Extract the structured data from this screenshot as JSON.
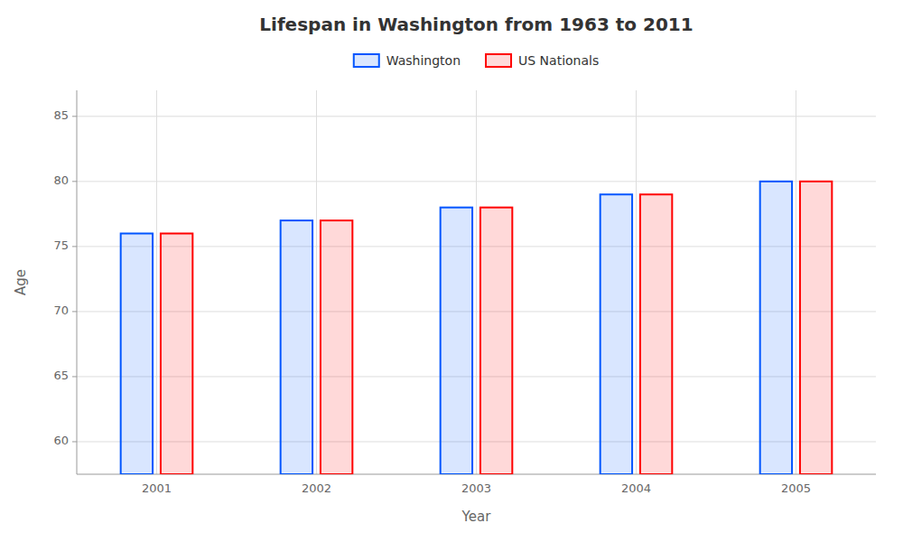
{
  "chart_data": {
    "type": "bar",
    "title": "Lifespan in Washington from 1963 to 2011",
    "xlabel": "Year",
    "ylabel": "Age",
    "categories": [
      "2001",
      "2002",
      "2003",
      "2004",
      "2005"
    ],
    "series": [
      {
        "name": "Washington",
        "color": "#0055ff",
        "values": [
          76,
          77,
          78,
          79,
          80
        ]
      },
      {
        "name": "US Nationals",
        "color": "#ff0000",
        "values": [
          76,
          77,
          78,
          79,
          80
        ]
      }
    ],
    "ylim": [
      57.5,
      87
    ],
    "yticks": [
      60,
      65,
      70,
      75,
      80,
      85
    ],
    "grid": true,
    "legend": "top"
  }
}
